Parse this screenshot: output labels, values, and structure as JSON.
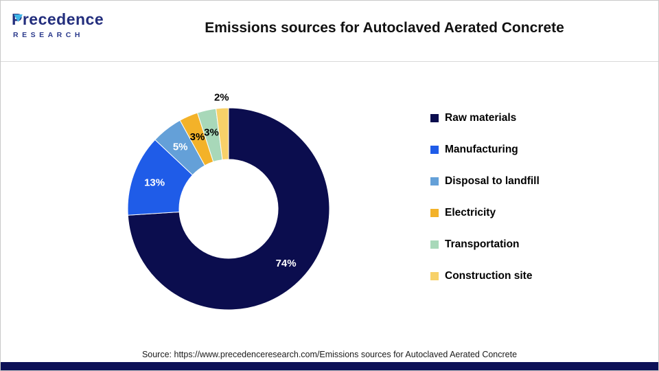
{
  "header": {
    "logo_line1": "Precedence",
    "logo_line2": "RESEARCH",
    "title": "Emissions sources for Autoclaved Aerated Concrete"
  },
  "chart_data": {
    "type": "pie",
    "subtype": "donut",
    "title": "Emissions sources for Autoclaved Aerated Concrete",
    "categories": [
      "Raw materials",
      "Manufacturing",
      "Disposal to landfill",
      "Electricity",
      "Transportation",
      "Construction site"
    ],
    "values": [
      74,
      13,
      5,
      3,
      3,
      2
    ],
    "data_labels": [
      "74%",
      "13%",
      "5%",
      "3%",
      "3%",
      "2%"
    ],
    "colors": [
      "#0b0d4e",
      "#1f5ce8",
      "#64a0d8",
      "#f3b229",
      "#a8d8b9",
      "#f7d169"
    ],
    "legend_position": "right",
    "start_angle_deg": -90,
    "direction": "clockwise",
    "inner_radius_ratio": 0.49
  },
  "footer": {
    "source": "Source: https://www.precedenceresearch.com/Emissions sources for Autoclaved Aerated Concrete",
    "bar_color": "#0d1157"
  }
}
